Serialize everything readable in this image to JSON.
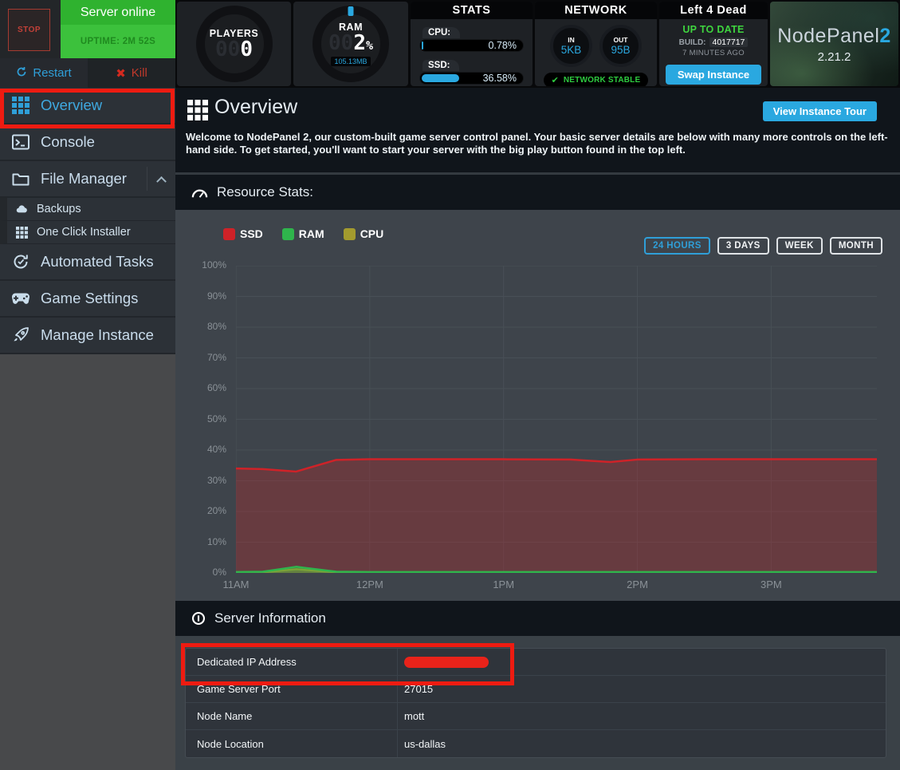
{
  "colors": {
    "accent_blue": "#2aa8e0",
    "status_green": "#33bb33",
    "annotation_red": "#ee1b11"
  },
  "server_controls": {
    "stop": "STOP",
    "status": "Server online",
    "uptime": "UPTIME: 2M 52S",
    "restart": "Restart",
    "kill": "Kill",
    "kill_icon": "✖"
  },
  "sidebar": {
    "items": [
      {
        "label": "Overview",
        "active": true
      },
      {
        "label": "Console"
      },
      {
        "label": "File Manager",
        "expanded": true
      },
      {
        "label": "Backups",
        "sub": true
      },
      {
        "label": "One Click Installer",
        "sub": true
      },
      {
        "label": "Automated Tasks"
      },
      {
        "label": "Game Settings"
      },
      {
        "label": "Manage Instance"
      }
    ]
  },
  "top_panels": {
    "players": {
      "label": "PLAYERS",
      "ghost_digits": "00",
      "value": "0"
    },
    "ram": {
      "label": "RAM",
      "ghost_digits": "00",
      "value": "2",
      "unit": "%",
      "detail": "105.13MB"
    },
    "stats": {
      "title": "STATS",
      "bars": [
        {
          "label": "CPU:",
          "value": "0.78%",
          "pct": 0.78
        },
        {
          "label": "SSD:",
          "value": "36.58%",
          "pct": 36.58
        }
      ]
    },
    "network": {
      "title": "NETWORK",
      "in_label": "IN",
      "in_value": "5KB",
      "out_label": "OUT",
      "out_value": "95B",
      "status_icon": "✔",
      "status": "NETWORK STABLE"
    },
    "instance": {
      "title": "Left 4 Dead",
      "update_status": "UP TO DATE",
      "build_label": "BUILD:",
      "build_number": "4017717",
      "updated_ago": "7 MINUTES AGO",
      "swap_button": "Swap Instance"
    },
    "brand": {
      "name": "NodePanel",
      "suffix": "2",
      "version": "2.21.2"
    }
  },
  "main_header": {
    "title": "Overview",
    "tour_button": "View Instance Tour",
    "welcome": "Welcome to NodePanel 2, our custom-built game server control panel. Your basic server details are below with many more controls on the left-hand side. To get started, you'll want to start your server with the big play button found in the top left."
  },
  "resource_stats": {
    "title": "Resource Stats:",
    "range_buttons": [
      {
        "label": "24 HOURS",
        "active": true
      },
      {
        "label": "3 DAYS",
        "active": false
      },
      {
        "label": "WEEK",
        "active": false
      },
      {
        "label": "MONTH",
        "active": false
      }
    ]
  },
  "chart_data": {
    "type": "area",
    "title": "Resource Stats",
    "x_hours": [
      11,
      11.2,
      11.45,
      11.75,
      12,
      12.5,
      13,
      13.5,
      13.65,
      13.8,
      14,
      14.5,
      15,
      15.4,
      15.79
    ],
    "series": [
      {
        "name": "SSD",
        "color": "#cf2228",
        "fill": "rgba(190,40,45,0.32)",
        "values": [
          34,
          33.8,
          33,
          36.8,
          37,
          37,
          37,
          36.9,
          36.5,
          36.1,
          36.9,
          37,
          37,
          37,
          37
        ]
      },
      {
        "name": "RAM",
        "color": "#2fb54c",
        "fill": "rgba(47,181,76,0.35)",
        "values": [
          0.3,
          0.4,
          2,
          0.4,
          0.3,
          0.3,
          0.3,
          0.3,
          0.3,
          0.3,
          0.3,
          0.3,
          0.3,
          0.3,
          0.3
        ]
      },
      {
        "name": "CPU",
        "color": "#a39b2e",
        "fill": "rgba(163,155,46,0.45)",
        "values": [
          0.15,
          0.2,
          1.2,
          0.2,
          0.15,
          0.15,
          0.15,
          0.15,
          0.15,
          0.15,
          0.15,
          0.15,
          0.15,
          0.15,
          0.15
        ]
      }
    ],
    "ylim": [
      0,
      100
    ],
    "xlim": [
      11,
      15.79
    ],
    "yticks": [
      {
        "value": 0,
        "label": "0%"
      },
      {
        "value": 10,
        "label": "10%"
      },
      {
        "value": 20,
        "label": "20%"
      },
      {
        "value": 30,
        "label": "30%"
      },
      {
        "value": 40,
        "label": "40%"
      },
      {
        "value": 50,
        "label": "50%"
      },
      {
        "value": 60,
        "label": "60%"
      },
      {
        "value": 70,
        "label": "70%"
      },
      {
        "value": 80,
        "label": "80%"
      },
      {
        "value": 90,
        "label": "90%"
      },
      {
        "value": 100,
        "label": "100%"
      }
    ],
    "xticks": [
      {
        "hour": 11,
        "label": "11AM"
      },
      {
        "hour": 12,
        "label": "12PM"
      },
      {
        "hour": 13,
        "label": "1PM"
      },
      {
        "hour": 14,
        "label": "2PM"
      },
      {
        "hour": 15,
        "label": "3PM"
      }
    ],
    "grid": true,
    "legend_position": "top-left"
  },
  "server_info": {
    "title": "Server Information",
    "rows": [
      {
        "label": "Dedicated IP Address",
        "value": "",
        "redacted": true
      },
      {
        "label": "Game Server Port",
        "value": "27015",
        "redacted": false
      },
      {
        "label": "Node Name",
        "value": "mott",
        "redacted": false
      },
      {
        "label": "Node Location",
        "value": "us-dallas",
        "redacted": false
      }
    ]
  }
}
